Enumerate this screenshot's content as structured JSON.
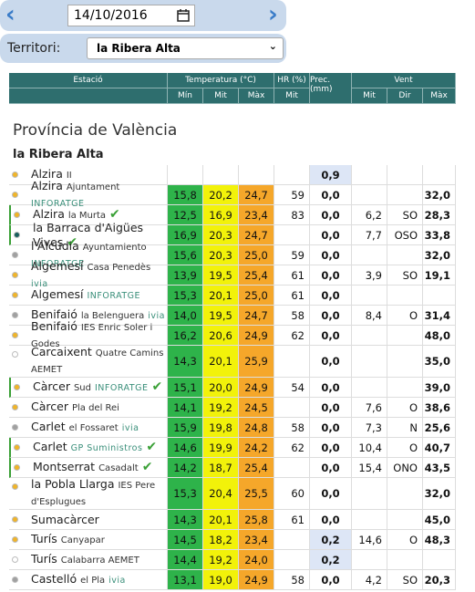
{
  "date": "14/10/2016",
  "filter": {
    "label": "Territori:",
    "value": "la Ribera Alta"
  },
  "table_header": {
    "station": "Estació",
    "temperature": "Temperatura (°C)",
    "humidity": "HR (%)",
    "precipitation": "Prec. (mm)",
    "wind": "Vent",
    "temperature_sub": [
      "Mín",
      "Mit",
      "Màx"
    ],
    "humidity_sub": "Mit",
    "wind_sub": [
      "Mit",
      "Dir",
      "Màx"
    ]
  },
  "province": "Província de València",
  "region": "la Ribera Alta",
  "rows": [
    {
      "name": "Alzira",
      "sub": "II",
      "dot": "#f0b429",
      "check": false,
      "values": [
        null,
        null,
        null,
        null,
        "0,9",
        null,
        null,
        null
      ]
    },
    {
      "name": "Alzira",
      "sub": "Ajuntament",
      "brand": "INFORATGE",
      "dot": "#f0b429",
      "check": false,
      "values": [
        "15,8",
        "20,2",
        "24,7",
        "59",
        "0,0",
        null,
        null,
        "32,0"
      ]
    },
    {
      "name": "Alzira",
      "sub": "la Murta",
      "dot": "#f0b429",
      "check": true,
      "values": [
        "12,5",
        "16,9",
        "23,4",
        "83",
        "0,0",
        "6,2",
        "SO",
        "28,3"
      ]
    },
    {
      "name": "la Barraca d'Aigües Vives",
      "dot": "#1a5e5e",
      "check": true,
      "values": [
        "16,9",
        "20,3",
        "24,7",
        null,
        "0,0",
        "7,7",
        "OSO",
        "33,8"
      ]
    },
    {
      "name": "l'Alcúdia",
      "sub": "Ayuntamiento",
      "brand": "INFORATGE",
      "dot": "#a0a0a0",
      "check": false,
      "values": [
        "15,6",
        "20,3",
        "25,0",
        "59",
        "0,0",
        null,
        null,
        "32,0"
      ]
    },
    {
      "name": "Algemesí",
      "sub": "Casa Penedès",
      "brand": "ivia",
      "dot": "#f0b429",
      "check": false,
      "values": [
        "13,9",
        "19,5",
        "25,4",
        "61",
        "0,0",
        "3,9",
        "SO",
        "19,1"
      ]
    },
    {
      "name": "Algemesí",
      "brand": "INFORATGE",
      "dot": "#f0b429",
      "check": false,
      "values": [
        "15,3",
        "20,1",
        "25,0",
        "61",
        "0,0",
        null,
        null,
        null
      ]
    },
    {
      "name": "Benifaió",
      "sub": "la Belenguera",
      "brand": "ivia",
      "dot": "#a0a0a0",
      "check": false,
      "values": [
        "14,0",
        "19,5",
        "24,7",
        "58",
        "0,0",
        "8,4",
        "O",
        "31,4"
      ]
    },
    {
      "name": "Benifaió",
      "sub": "IES Enric Soler i Godes",
      "dot": "#f0b429",
      "check": false,
      "values": [
        "16,2",
        "20,6",
        "24,9",
        "62",
        "0,0",
        null,
        null,
        "48,0"
      ]
    },
    {
      "name": "Carcaixent",
      "sub": "Quatre Camins AEMET",
      "dot": "#ffffff",
      "check": false,
      "tall": true,
      "values": [
        "14,3",
        "20,1",
        "25,9",
        null,
        "0,0",
        null,
        null,
        "35,0"
      ]
    },
    {
      "name": "Càrcer",
      "sub": "Sud",
      "brand": "INFORATGE",
      "dot": "#f0b429",
      "check": true,
      "values": [
        "15,1",
        "20,0",
        "24,9",
        "54",
        "0,0",
        null,
        null,
        "39,0"
      ]
    },
    {
      "name": "Càrcer",
      "sub": "Pla del Rei",
      "dot": "#f0b429",
      "check": false,
      "values": [
        "14,1",
        "19,2",
        "24,5",
        null,
        "0,0",
        "7,6",
        "O",
        "38,6"
      ]
    },
    {
      "name": "Carlet",
      "sub": "el Fossaret",
      "brand": "ivia",
      "dot": "#a0a0a0",
      "check": false,
      "values": [
        "15,9",
        "19,8",
        "24,8",
        "58",
        "0,0",
        "7,3",
        "N",
        "25,6"
      ]
    },
    {
      "name": "Carlet",
      "brand": "GP Suministros",
      "dot": "#f0b429",
      "check": true,
      "values": [
        "14,6",
        "19,9",
        "24,2",
        "62",
        "0,0",
        "10,4",
        "O",
        "40,7"
      ]
    },
    {
      "name": "Montserrat",
      "sub": "Casadalt",
      "dot": "#f0b429",
      "check": true,
      "values": [
        "14,2",
        "18,7",
        "25,4",
        null,
        "0,0",
        "15,4",
        "ONO",
        "43,5"
      ]
    },
    {
      "name": "la Pobla Llarga",
      "sub": "IES Pere d'Esplugues",
      "dot": "#f0b429",
      "check": false,
      "tall": true,
      "values": [
        "15,3",
        "20,4",
        "25,5",
        "60",
        "0,0",
        null,
        null,
        "32,0"
      ]
    },
    {
      "name": "Sumacàrcer",
      "dot": "#f0b429",
      "check": false,
      "values": [
        "14,3",
        "20,1",
        "25,8",
        "61",
        "0,0",
        null,
        null,
        "45,0"
      ]
    },
    {
      "name": "Turís",
      "sub": "Canyapar",
      "dot": "#f0b429",
      "check": false,
      "values": [
        "14,5",
        "18,2",
        "23,4",
        null,
        "0,2",
        "14,6",
        "O",
        "48,3"
      ]
    },
    {
      "name": "Turís",
      "sub": "Calabarra AEMET",
      "dot": "#ffffff",
      "check": false,
      "values": [
        "14,4",
        "19,2",
        "24,0",
        null,
        "0,2",
        null,
        null,
        null
      ]
    },
    {
      "name": "Castelló",
      "sub": "el Pla",
      "brand": "ivia",
      "dot": "#a0a0a0",
      "check": false,
      "values": [
        "13,1",
        "19,0",
        "24,9",
        "58",
        "0,0",
        "4,2",
        "SO",
        "20,3"
      ]
    }
  ]
}
